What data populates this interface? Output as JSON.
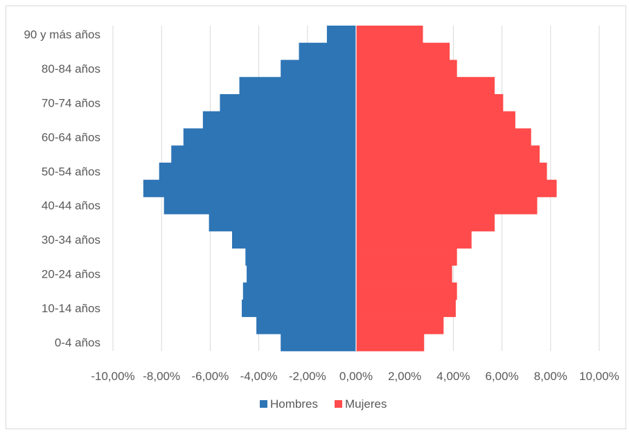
{
  "chart_data": {
    "type": "bar",
    "orientation": "horizontal",
    "subtype": "population-pyramid",
    "title": "",
    "xlabel": "",
    "ylabel": "",
    "xlim": [
      -10,
      10
    ],
    "x_ticks": [
      -10,
      -8,
      -6,
      -4,
      -2,
      0,
      2,
      4,
      6,
      8,
      10
    ],
    "x_tick_labels": [
      "-10,00%",
      "-8,00%",
      "-6,00%",
      "-4,00%",
      "-2,00%",
      "0,00%",
      "2,00%",
      "4,00%",
      "6,00%",
      "8,00%",
      "10,00%"
    ],
    "grid": "vertical",
    "legend": "bottom",
    "categories": [
      "0-4 años",
      "5-9 años",
      "10-14 años",
      "15-19 años",
      "20-24 años",
      "25-29 años",
      "30-34 años",
      "35-39 años",
      "40-44 años",
      "45-49 años",
      "50-54 años",
      "55-59 años",
      "60-64 años",
      "65-69 años",
      "70-74 años",
      "75-79 años",
      "80-84 años",
      "85-89 años",
      "90 y más años"
    ],
    "category_labels": [
      "0-4 años",
      "",
      "10-14 años",
      "",
      "20-24 años",
      "",
      "30-34 años",
      "",
      "40-44 años",
      "",
      "50-54 años",
      "",
      "60-64 años",
      "",
      "70-74 años",
      "",
      "80-84 años",
      "",
      "90 y más años"
    ],
    "series": [
      {
        "name": "Hombres",
        "color": "#2e75b6",
        "values": [
          -3.1,
          -4.1,
          -4.7,
          -4.65,
          -4.5,
          -4.55,
          -5.1,
          -6.05,
          -7.9,
          -8.75,
          -8.1,
          -7.6,
          -7.1,
          -6.3,
          -5.6,
          -4.8,
          -3.1,
          -2.35,
          -1.2
        ]
      },
      {
        "name": "Mujeres",
        "color": "#ff4b4b",
        "values": [
          2.8,
          3.6,
          4.1,
          4.15,
          3.95,
          4.15,
          4.75,
          5.7,
          7.45,
          8.25,
          7.85,
          7.55,
          7.2,
          6.55,
          6.05,
          5.7,
          4.15,
          3.85,
          2.75
        ]
      }
    ]
  }
}
